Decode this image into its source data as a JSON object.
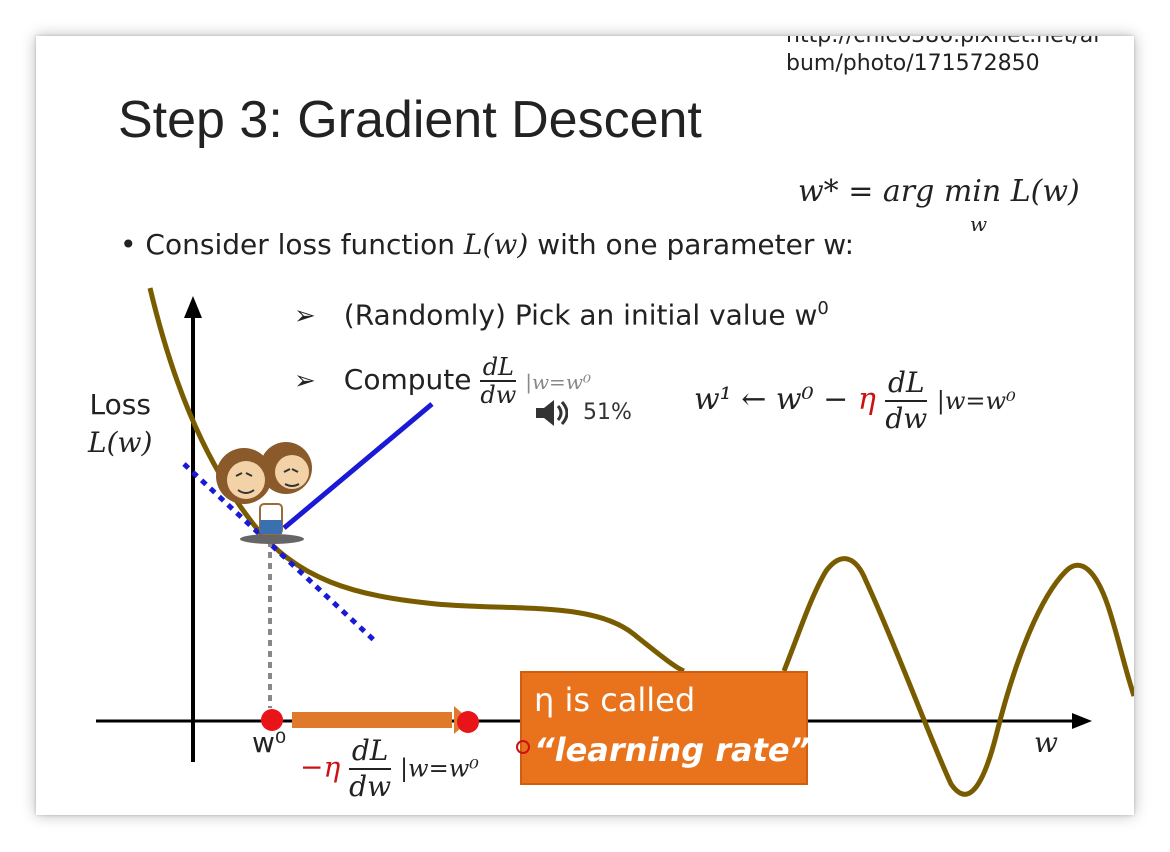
{
  "source_url": {
    "line1": "http://chico386.pixnet.net/al",
    "line2": "bum/photo/171572850"
  },
  "title": "Step 3: Gradient Descent",
  "argmin_formula": {
    "main": "w* = arg min L(w)",
    "subscript": "w"
  },
  "bullet": {
    "marker": "•",
    "text_before": "Consider loss function ",
    "math": "L(w)",
    "text_after": " with one parameter w:"
  },
  "sub_items": [
    {
      "marker": "➢",
      "text": "(Randomly) Pick an initial value w",
      "superscript": "0"
    },
    {
      "marker": "➢",
      "text": "Compute ",
      "fraction": {
        "num": "dL",
        "den": "dw"
      },
      "evaluated_at": "|w=w⁰"
    }
  ],
  "update_rule": {
    "lhs": "w¹ ← w⁰ − ",
    "eta": "η",
    "fraction": {
      "num": "dL",
      "den": "dw"
    },
    "evaluated_at": "|w=w⁰"
  },
  "volume_overlay": {
    "icon": "speaker-icon",
    "percent": "51%"
  },
  "axis_labels": {
    "y_line1": "Loss",
    "y_line2": "L(w)",
    "x": "w",
    "w0": "w⁰"
  },
  "step_expression": {
    "neg_eta": "−η",
    "fraction": {
      "num": "dL",
      "den": "dw"
    },
    "evaluated_at": "|w=w⁰"
  },
  "callout": {
    "line1": "η is called",
    "line2": "“learning rate”"
  },
  "colors": {
    "curve": "#7a5c00",
    "tangent": "#1a1ad6",
    "tangent_dotted": "#1a1ad6",
    "point": "#e8141a",
    "callout": "#e8731c",
    "step_arrow": "#e07a2a",
    "text": "#222222",
    "eta_red": "#cc1111"
  }
}
